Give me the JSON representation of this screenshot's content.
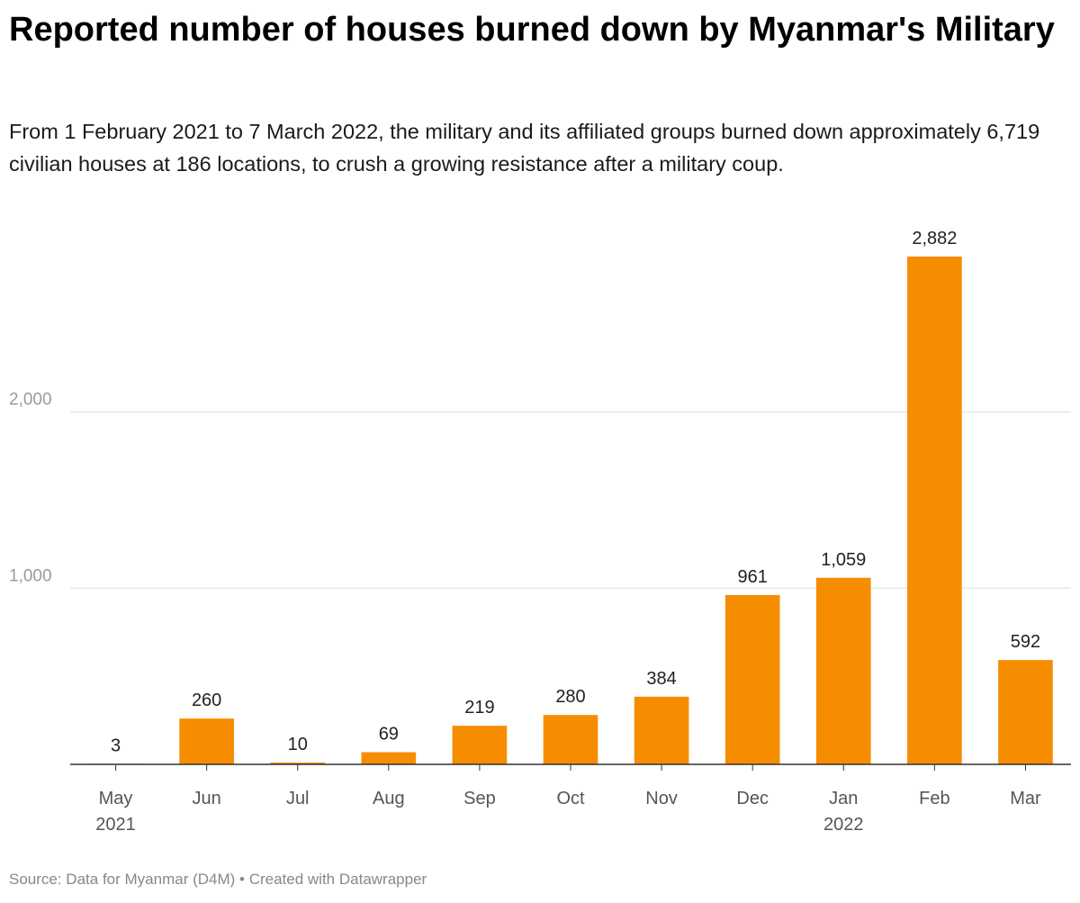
{
  "header": {
    "title": "Reported number of houses burned down by Myanmar's Military",
    "subtitle": "From 1 February 2021 to 7 March 2022, the military and its affiliated groups burned down approximately 6,719 civilian houses at 186 locations, to crush a growing resistance after a military coup."
  },
  "footer": {
    "source": "Source: Data for Myanmar (D4M)",
    "separator": " • ",
    "credit": "Created with Datawrapper"
  },
  "colors": {
    "bar": "#f68d01",
    "gridline": "#dddddd",
    "baseline": "#333333"
  },
  "chart_data": {
    "type": "bar",
    "title": "Reported number of houses burned down by Myanmar's Military",
    "categories": [
      "May",
      "Jun",
      "Jul",
      "Aug",
      "Sep",
      "Oct",
      "Nov",
      "Dec",
      "Jan",
      "Feb",
      "Mar"
    ],
    "category_sublabels": [
      "2021",
      "",
      "",
      "",
      "",
      "",
      "",
      "",
      "2022",
      "",
      ""
    ],
    "values": [
      3,
      260,
      10,
      69,
      219,
      280,
      384,
      961,
      1059,
      2882,
      592
    ],
    "value_labels": [
      "3",
      "260",
      "10",
      "69",
      "219",
      "280",
      "384",
      "961",
      "1,059",
      "2,882",
      "592"
    ],
    "y_ticks": [
      1000,
      2000
    ],
    "y_tick_labels": [
      "1,000",
      "2,000"
    ],
    "ylim": [
      0,
      2882
    ],
    "grid": true,
    "xlabel": "",
    "ylabel": ""
  }
}
